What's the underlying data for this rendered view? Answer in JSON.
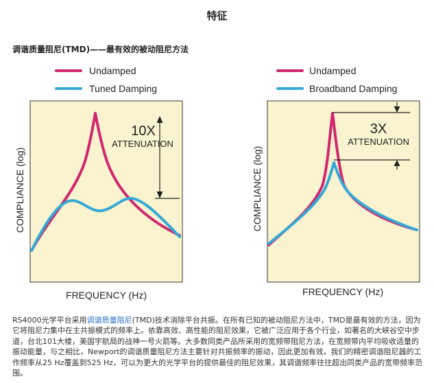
{
  "page": {
    "title": "特征",
    "subtitle": "调谐质量阻尼(TMD)——最有效的被动阻尼方法"
  },
  "colors": {
    "undamped": "#d0276e",
    "damped": "#33a9d6",
    "plot_bg": "#faf3cf"
  },
  "charts": {
    "left": {
      "legend": [
        "Undamped",
        "Tuned Damping"
      ],
      "ylabel": "COMPLIANCE (log)",
      "xlabel": "FREQUENCY (Hz)",
      "annotation_value": "10X",
      "annotation_text": "ATTENUATION"
    },
    "right": {
      "legend": [
        "Undamped",
        "Broadband Damping"
      ],
      "ylabel": "COMPLIANCE (log)",
      "xlabel": "FREQUENCY (Hz)",
      "annotation_value": "3X",
      "annotation_text": "ATTENUATION"
    }
  },
  "description": {
    "part1": "RS4000光学平台采用",
    "link": "调谐质量阻尼",
    "part2": "(TMD)技术消除平台共振。在所有已知的被动阻尼方法中，TMD是最有效的方法，因为它将阻尼力集中在主共振模式的频率上。依靠高效、高性能的阻尼效果，它被广泛应用于各个行业，如著名的大峡谷空中步道，台北101大楼，美国宇航局的战神一号火箭等。大多数同类产品所采用的宽频带阻尼方法，在宽频带内平均吸收适量的振动能量，与之相比，Newport的调谐质量阻尼方法主要针对共振频率的振动，因此更加有效。我们的精密调谐阻尼器的工作频率从25 Hz覆盖到525 Hz，可以为更大的光学平台的提供最佳的阻尼效果，其调谐频率往往超出同类产品的宽带频率范围。"
  }
}
